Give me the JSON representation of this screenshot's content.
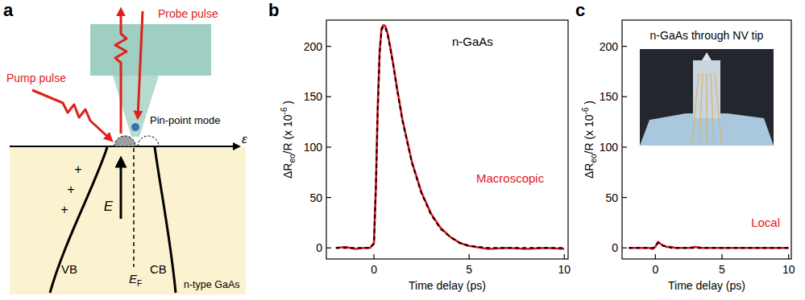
{
  "panel_labels": [
    "a",
    "b",
    "c"
  ],
  "diagram": {
    "probe_label": "Probe pulse",
    "pump_label": "Pump pulse",
    "mode_label": "Pin-point mode",
    "field_label": "E",
    "valence_band": "VB",
    "conduction_band": "CB",
    "fermi_level": {
      "main": "E",
      "sub": "F"
    },
    "material": "n-type GaAs",
    "axis_label": "ε",
    "charges": [
      "+",
      "+",
      "+"
    ]
  },
  "chart_data": [
    {
      "type": "line",
      "title": "n-GaAs",
      "annotations": [
        "Macroscopic"
      ],
      "xlabel": "Time delay (ps)",
      "ylabel": [
        {
          "text": "ΔR"
        },
        {
          "text": "eo",
          "sub": true
        },
        {
          "text": "/R (x 10"
        },
        {
          "text": "-6",
          "sup": true
        },
        {
          "text": " )"
        }
      ],
      "xlim": [
        -2.5,
        10.2
      ],
      "ylim": [
        -11,
        226
      ],
      "xticks": [
        0,
        5,
        10
      ],
      "yticks": [
        0,
        50,
        100,
        150,
        200
      ],
      "x": [
        -2,
        -1.5,
        -1,
        -0.5,
        -0.2,
        0,
        0.1,
        0.2,
        0.3,
        0.4,
        0.5,
        0.6,
        0.7,
        0.8,
        1.0,
        1.2,
        1.5,
        2,
        2.5,
        3,
        3.5,
        4,
        4.5,
        5,
        6,
        7,
        8,
        9,
        10
      ],
      "series": [
        {
          "color": "#e8141e",
          "line_style": "solid",
          "values": [
            0,
            1,
            -1,
            0,
            0,
            5,
            60,
            140,
            195,
            218,
            221,
            220,
            214,
            205,
            184,
            160,
            127,
            85,
            55,
            34,
            20,
            11,
            5,
            2,
            -1,
            0,
            -1,
            0,
            -1
          ]
        },
        {
          "color": "#000000",
          "line_style": "dashed",
          "values": [
            0,
            0,
            0,
            0,
            0,
            4,
            58,
            138,
            193,
            216,
            220,
            218,
            213,
            204,
            183,
            159,
            126,
            84,
            54,
            33,
            19,
            11,
            5,
            2,
            0,
            0,
            0,
            0,
            0
          ]
        }
      ]
    },
    {
      "type": "line",
      "title": "n-GaAs through NV tip",
      "annotations": [
        "Local"
      ],
      "xlabel": "Time delay (ps)",
      "ylabel": [
        {
          "text": "ΔR"
        },
        {
          "text": "eo",
          "sub": true
        },
        {
          "text": "/R (x 10"
        },
        {
          "text": "-6",
          "sup": true
        },
        {
          "text": " )"
        }
      ],
      "xlim": [
        -2.5,
        10.2
      ],
      "ylim": [
        -11,
        226
      ],
      "xticks": [
        0,
        5,
        10
      ],
      "yticks": [
        0,
        50,
        100,
        150,
        200
      ],
      "x": [
        -2,
        -1.5,
        -1,
        -0.5,
        -0.2,
        0,
        0.1,
        0.2,
        0.3,
        0.4,
        0.5,
        0.6,
        0.7,
        0.8,
        1.0,
        1.2,
        1.5,
        2,
        2.5,
        3,
        3.5,
        4,
        4.5,
        5,
        6,
        7,
        8,
        9,
        10
      ],
      "series": [
        {
          "color": "#e8141e",
          "line_style": "solid",
          "values": [
            0,
            0,
            0,
            0,
            -1,
            1,
            4,
            6,
            5,
            4,
            3,
            2,
            2,
            1,
            1,
            1,
            0,
            0,
            0,
            1,
            0,
            0,
            0,
            0,
            0,
            0,
            0,
            0,
            0
          ]
        },
        {
          "color": "#000000",
          "line_style": "dashed",
          "values": [
            0,
            0,
            0,
            0,
            0,
            1,
            3,
            5,
            5,
            4,
            3,
            2,
            2,
            1,
            1,
            0,
            0,
            0,
            0,
            0,
            0,
            0,
            0,
            0,
            0,
            0,
            0,
            0,
            0
          ]
        }
      ]
    }
  ]
}
